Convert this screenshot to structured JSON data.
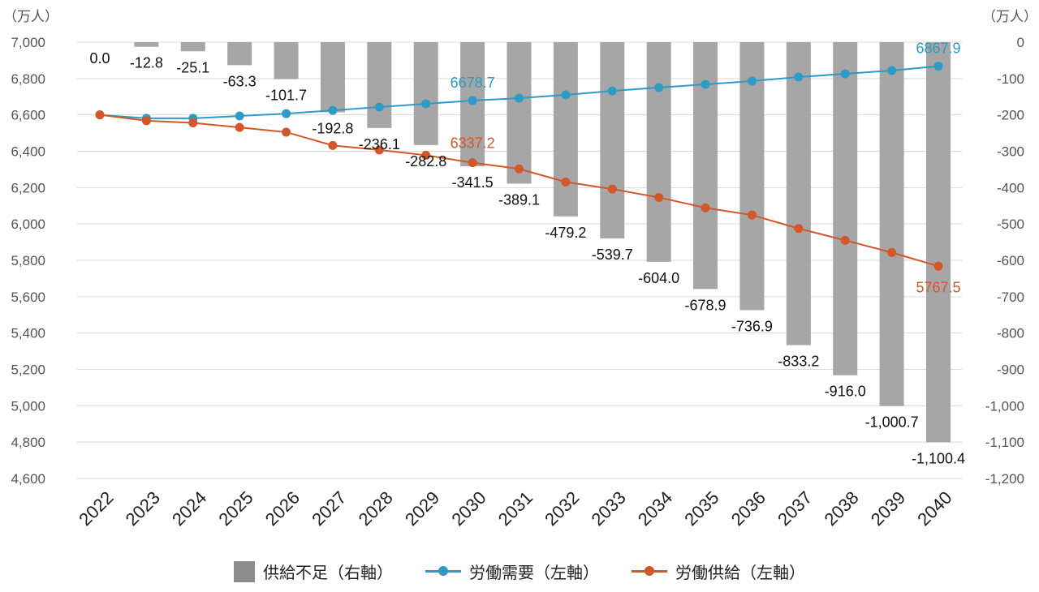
{
  "chart_data": {
    "type": "bar+line",
    "left_axis_unit": "（万人）",
    "right_axis_unit": "（万人）",
    "left_ylim": [
      4600,
      7000
    ],
    "left_ticks": [
      "7,000",
      "6,800",
      "6,600",
      "6,400",
      "6,200",
      "6,000",
      "5,800",
      "5,600",
      "5,400",
      "5,200",
      "5,000",
      "4,800",
      "4,600"
    ],
    "right_ylim": [
      -1200,
      0
    ],
    "right_ticks": [
      "0",
      "-100",
      "-200",
      "-300",
      "-400",
      "-500",
      "-600",
      "-700",
      "-800",
      "-900",
      "-1,000",
      "-1,100",
      "-1,200"
    ],
    "categories": [
      "2022",
      "2023",
      "2024",
      "2025",
      "2026",
      "2027",
      "2028",
      "2029",
      "2030",
      "2031",
      "2032",
      "2033",
      "2034",
      "2035",
      "2036",
      "2037",
      "2038",
      "2039",
      "2040"
    ],
    "grid": true,
    "legend_position": "bottom",
    "series": [
      {
        "name": "供給不足（右軸）",
        "type": "bar",
        "axis": "right",
        "color": "#a6a6a6",
        "values": [
          0.0,
          -12.8,
          -25.1,
          -63.3,
          -101.7,
          -192.8,
          -236.1,
          -282.8,
          -341.5,
          -389.1,
          -479.2,
          -539.7,
          -604.0,
          -678.9,
          -736.9,
          -833.2,
          -916.0,
          -1000.7,
          -1100.4
        ],
        "labels": [
          "0.0",
          "-12.8",
          "-25.1",
          "-63.3",
          "-101.7",
          "-192.8",
          "-236.1",
          "-282.8",
          "-341.5",
          "-389.1",
          "-479.2",
          "-539.7",
          "-604.0",
          "-678.9",
          "-736.9",
          "-833.2",
          "-916.0",
          "-1,000.7",
          "-1,100.4"
        ]
      },
      {
        "name": "労働需要（左軸）",
        "type": "line",
        "axis": "left",
        "color": "#2e9bc6",
        "values": [
          6600,
          6581,
          6581,
          6594,
          6607,
          6625,
          6643,
          6661,
          6678.7,
          6692,
          6710,
          6732,
          6750,
          6768,
          6786,
          6808,
          6826,
          6844,
          6867.9
        ],
        "labels": {
          "2030": "6678.7",
          "2040": "6867.9"
        }
      },
      {
        "name": "労働供給（左軸）",
        "type": "line",
        "axis": "left",
        "color": "#d4572a",
        "values": [
          6600,
          6568,
          6556,
          6531,
          6505,
          6432,
          6407,
          6378,
          6337.2,
          6303,
          6231,
          6192,
          6146,
          6089,
          6049,
          5975,
          5910,
          5843,
          5767.5
        ],
        "labels": {
          "2030": "6337.2",
          "2040": "5767.5"
        }
      }
    ]
  }
}
